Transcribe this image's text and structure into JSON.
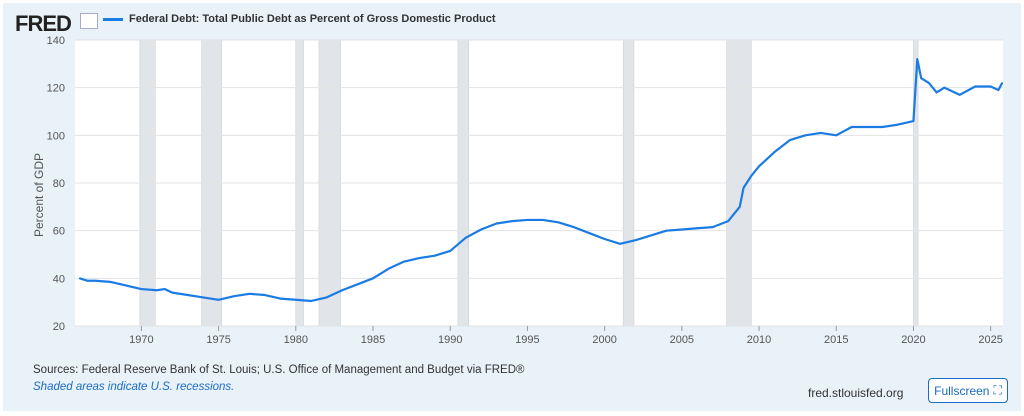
{
  "header": {
    "logo": "FRED",
    "legend": "Federal Debt: Total Public Debt as Percent of Gross Domestic Product"
  },
  "footer": {
    "sources": "Sources: Federal Reserve Bank of St. Louis; U.S. Office of Management and Budget via FRED®",
    "shaded": "Shaded areas indicate U.S. recessions.",
    "site": "fred.stlouisfed.org",
    "fullscreen": "Fullscreen"
  },
  "colors": {
    "series": "#1a7ce3",
    "recession": "#e1e5ea"
  },
  "chart_data": {
    "type": "line",
    "title": "",
    "ylabel": "Percent of GDP",
    "xlabel": "",
    "ylim": [
      20,
      140
    ],
    "xlim": [
      1965.7,
      2025.8
    ],
    "yticks": [
      20,
      40,
      60,
      80,
      100,
      120,
      140
    ],
    "xticks": [
      1970,
      1975,
      1980,
      1985,
      1990,
      1995,
      2000,
      2005,
      2010,
      2015,
      2020,
      2025
    ],
    "grid": true,
    "recessions": [
      [
        1969.9,
        1970.9
      ],
      [
        1973.9,
        1975.2
      ],
      [
        1980.0,
        1980.5
      ],
      [
        1981.5,
        1982.9
      ],
      [
        1990.5,
        1991.2
      ],
      [
        2001.2,
        2001.9
      ],
      [
        2007.9,
        2009.5
      ],
      [
        2020.0,
        2020.3
      ]
    ],
    "series": [
      {
        "name": "Federal Debt: Total Public Debt as Percent of Gross Domestic Product",
        "x": [
          1966,
          1966.5,
          1967,
          1968,
          1969,
          1970,
          1971,
          1971.5,
          1972,
          1973,
          1974,
          1975,
          1976,
          1977,
          1978,
          1979,
          1980,
          1981,
          1982,
          1983,
          1984,
          1985,
          1986,
          1987,
          1988,
          1989,
          1990,
          1991,
          1992,
          1993,
          1994,
          1995,
          1996,
          1997,
          1998,
          1999,
          2000,
          2001,
          2002,
          2003,
          2004,
          2005,
          2006,
          2007,
          2008,
          2008.75,
          2009,
          2009.5,
          2010,
          2011,
          2012,
          2013,
          2014,
          2015,
          2016,
          2017,
          2018,
          2019,
          2020,
          2020.25,
          2020.5,
          2021,
          2021.5,
          2022,
          2023,
          2024,
          2025,
          2025.5,
          2025.75
        ],
        "y": [
          40,
          39,
          39,
          38.5,
          37,
          35.5,
          35,
          35.5,
          34,
          33,
          32,
          31,
          32.5,
          33.5,
          33,
          31.5,
          31,
          30.5,
          32,
          35,
          37.5,
          40,
          44,
          47,
          48.5,
          49.5,
          51.5,
          57,
          60.5,
          63,
          64,
          64.5,
          64.5,
          63.5,
          61.5,
          59,
          56.5,
          54.5,
          56,
          58,
          60,
          60.5,
          61,
          61.5,
          64,
          70,
          78,
          83,
          87,
          93,
          98,
          100,
          101,
          100,
          103.5,
          103.5,
          103.5,
          104.5,
          106,
          132,
          124,
          122,
          118,
          120,
          117,
          120.5,
          120.5,
          119,
          122
        ]
      }
    ]
  }
}
